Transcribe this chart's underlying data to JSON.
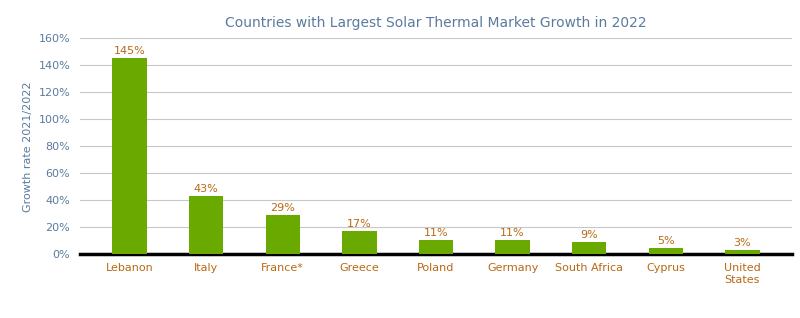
{
  "title": "Countries with Largest Solar Thermal Market Growth in 2022",
  "categories": [
    "Lebanon",
    "Italy",
    "France*",
    "Greece",
    "Poland",
    "Germany",
    "South Africa",
    "Cyprus",
    "United\nStates"
  ],
  "values": [
    145,
    43,
    29,
    17,
    11,
    11,
    9,
    5,
    3
  ],
  "bar_color": "#6aaa00",
  "ylabel": "Growth rate 2021/2022",
  "ylim": [
    0,
    160
  ],
  "yticks": [
    0,
    20,
    40,
    60,
    80,
    100,
    120,
    140,
    160
  ],
  "ytick_labels": [
    "0%",
    "20%",
    "40%",
    "60%",
    "80%",
    "100%",
    "120%",
    "140%",
    "160%"
  ],
  "title_color": "#5b7b9e",
  "ylabel_color": "#5b7b9e",
  "xlabel_color": "#b86914",
  "label_fontsize": 8,
  "title_fontsize": 10,
  "ylabel_fontsize": 8,
  "xlabel_fontsize": 8,
  "ytick_fontsize": 8,
  "background_color": "#ffffff",
  "grid_color": "#c8c8c8"
}
